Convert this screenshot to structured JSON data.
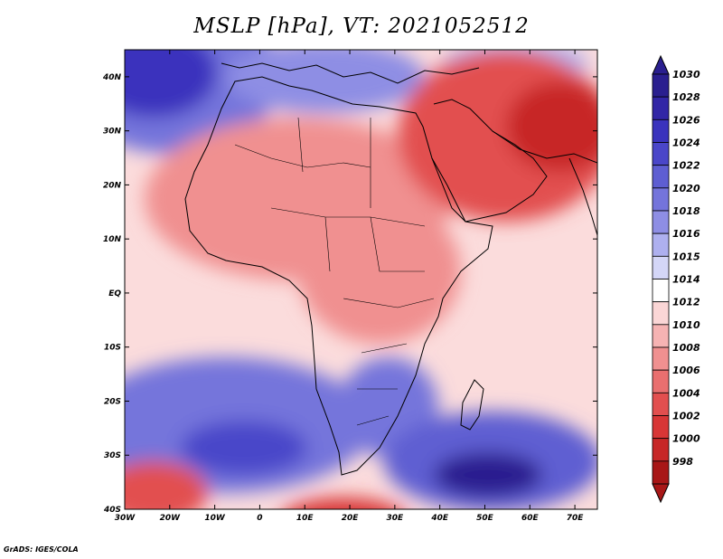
{
  "title": "MSLP [hPa], VT: 2021052512",
  "credit": "GrADS: IGES/COLA",
  "chart_data": {
    "type": "map",
    "title": "MSLP [hPa], VT: 2021052512",
    "lon_ticks": [
      "30W",
      "20W",
      "10W",
      "0",
      "10E",
      "20E",
      "30E",
      "40E",
      "50E",
      "60E",
      "70E"
    ],
    "lat_ticks": [
      "40N",
      "30N",
      "20N",
      "10N",
      "EQ",
      "10S",
      "20S",
      "30S",
      "40S"
    ],
    "lon_range": [
      -30,
      75
    ],
    "lat_range": [
      -40,
      45
    ],
    "colorbar": {
      "levels": [
        "1030",
        "1028",
        "1026",
        "1024",
        "1022",
        "1020",
        "1018",
        "1016",
        "1015",
        "1014",
        "1012",
        "1010",
        "1008",
        "1006",
        "1004",
        "1002",
        "1000",
        "998"
      ],
      "colors": [
        "#2a1f8f",
        "#3226a6",
        "#3a33bd",
        "#4a46c9",
        "#5e5ed2",
        "#7474db",
        "#8e8ee4",
        "#aeb0ef",
        "#d4d6f7",
        "#ffffff",
        "#fbd6d6",
        "#f6b3b3",
        "#f09090",
        "#e96f6f",
        "#e24f4f",
        "#d83636",
        "#c72727",
        "#a81717"
      ]
    }
  }
}
